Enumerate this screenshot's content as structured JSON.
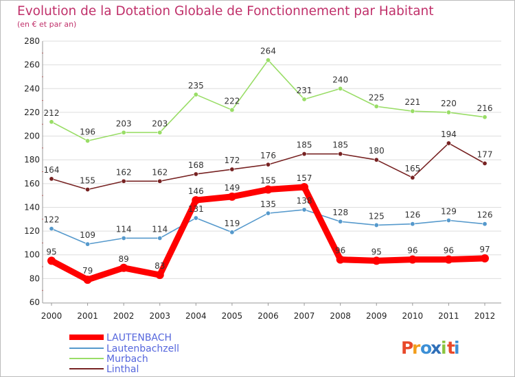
{
  "chart_data": {
    "type": "line",
    "title": "Evolution de la Dotation Globale de Fonctionnement par Habitant",
    "subtitle": "(en € et par an)",
    "x": [
      "2000",
      "2001",
      "2002",
      "2003",
      "2004",
      "2005",
      "2006",
      "2007",
      "2008",
      "2009",
      "2010",
      "2011",
      "2012"
    ],
    "ylim": [
      60,
      280
    ],
    "yticks": [
      "60",
      "80",
      "100",
      "120",
      "140",
      "160",
      "180",
      "200",
      "220",
      "240",
      "260",
      "280"
    ],
    "grid": "horizontal",
    "legend_position": "bottom-left",
    "series": [
      {
        "name": "LAUTENBACH",
        "color": "#ff0000",
        "emphasis": true,
        "values": [
          95,
          79,
          89,
          83,
          146,
          149,
          155,
          157,
          96,
          95,
          96,
          96,
          97
        ]
      },
      {
        "name": "Lautenbachzell",
        "color": "#5599cc",
        "values": [
          122,
          109,
          114,
          114,
          131,
          119,
          135,
          138,
          128,
          125,
          126,
          129,
          126
        ]
      },
      {
        "name": "Murbach",
        "color": "#99dd66",
        "values": [
          212,
          196,
          203,
          203,
          235,
          222,
          264,
          231,
          240,
          225,
          221,
          220,
          216
        ]
      },
      {
        "name": "Linthal",
        "color": "#772222",
        "values": [
          164,
          155,
          162,
          162,
          168,
          172,
          176,
          185,
          185,
          180,
          165,
          194,
          177
        ]
      }
    ]
  },
  "brand": {
    "letters": [
      "P",
      "r",
      "o",
      "x",
      "i",
      "t",
      "i"
    ],
    "colors": [
      "#e8492a",
      "#f29d1b",
      "#3c8fd6",
      "#2f6fb8",
      "#8ac43f",
      "#e8492a",
      "#3c8fd6"
    ]
  },
  "colors": {
    "title": "#c0306a",
    "axis": "#999999",
    "grid": "#dddddd",
    "tick_label": "#222222",
    "value_label": "#333333"
  }
}
